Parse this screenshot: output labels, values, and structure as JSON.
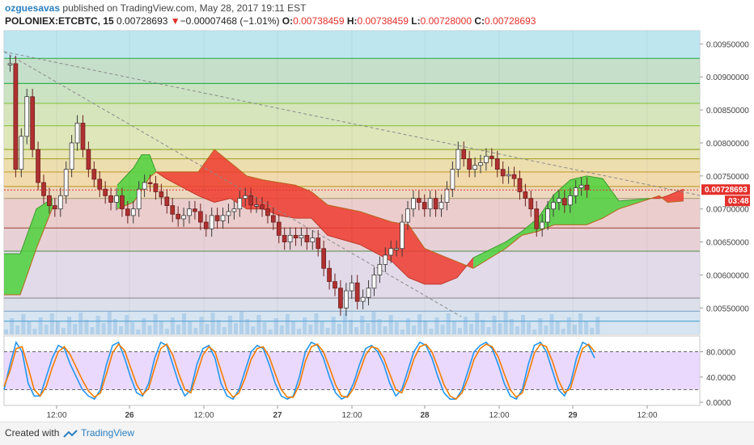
{
  "header": {
    "author": "ozguesavas",
    "published_text": "published on TradingView.com, May 28, 2017 19:11 EST",
    "symbol": "POLONIEX:ETCBTC, 15",
    "last": "0.00728693",
    "arrow": "▼",
    "change": "−0.00007468 (−1.01%)",
    "o_label": "O:",
    "o_value": "0.00738459",
    "h_label": "H:",
    "h_value": "0.00738459",
    "l_label": "L:",
    "l_value": "0.00728000",
    "c_label": "C:",
    "c_value": "0.00728693"
  },
  "footer": {
    "created": "Created with",
    "brand": "TradingView"
  },
  "colors": {
    "up": "#53b987",
    "down": "#eb4d5c",
    "kumo_bull": "#4cd13c",
    "kumo_bear": "#ee3b2f",
    "k_line": "#2196f3",
    "d_line": "#f57c00",
    "stoch_bg": "#e3ccfb"
  },
  "chart_data": [
    {
      "type": "candlestick",
      "title": "POLONIEX:ETCBTC, 15",
      "x_tick_labels": [
        "12:00",
        "26",
        "12:00",
        "27",
        "12:00",
        "28",
        "12:00",
        "29",
        "12:00"
      ],
      "y_tick_labels": [
        "0.00950000",
        "0.00900000",
        "0.00850000",
        "0.00800000",
        "0.00750000",
        "0.00700000",
        "0.00650000",
        "0.00600000",
        "0.00550000"
      ],
      "ylim": [
        0.0051,
        0.0097
      ],
      "last_price_label": "0.00728693",
      "countdown_label": "03:48",
      "fib_levels": [
        0.00928,
        0.0089,
        0.0086,
        0.00826,
        0.0079,
        0.00776,
        0.00756,
        0.00734,
        0.00716,
        0.00671,
        0.00636,
        0.00565,
        0.00545,
        0.0053
      ],
      "close_series": [
        0.0092,
        0.0076,
        0.0081,
        0.0087,
        0.0079,
        0.0074,
        0.0072,
        0.00705,
        0.007,
        0.0072,
        0.0076,
        0.008,
        0.0083,
        0.0079,
        0.0076,
        0.00745,
        0.0073,
        0.0072,
        0.0071,
        0.0072,
        0.007,
        0.0069,
        0.007,
        0.0073,
        0.0074,
        0.00738,
        0.00726,
        0.00718,
        0.00705,
        0.00692,
        0.00685,
        0.0069,
        0.007,
        0.00696,
        0.0068,
        0.0067,
        0.0069,
        0.00682,
        0.0069,
        0.00696,
        0.007,
        0.00716,
        0.0072,
        0.00706,
        0.00706,
        0.007,
        0.0069,
        0.0068,
        0.0066,
        0.0065,
        0.0066,
        0.00656,
        0.0066,
        0.0065,
        0.00656,
        0.0064,
        0.0061,
        0.0059,
        0.0058,
        0.0055,
        0.00576,
        0.00588,
        0.0056,
        0.00566,
        0.0058,
        0.006,
        0.00616,
        0.0063,
        0.0064,
        0.0064,
        0.0068,
        0.007,
        0.00716,
        0.0071,
        0.007,
        0.00716,
        0.007,
        0.0071,
        0.0073,
        0.0076,
        0.0079,
        0.00776,
        0.0076,
        0.00766,
        0.0077,
        0.0078,
        0.00776,
        0.0076,
        0.0075,
        0.00752,
        0.00746,
        0.00726,
        0.00716,
        0.007,
        0.0067,
        0.0068,
        0.007,
        0.0071,
        0.00716,
        0.00706,
        0.0072,
        0.00732,
        0.00736,
        0.00729
      ],
      "kumo_bull_segments": [
        {
          "x": [
            0.0,
            1.0,
            2.0,
            3.0
          ],
          "span_a": [
            0.00632,
            0.00632,
            0.007,
            0.00716
          ],
          "span_b": [
            0.0057,
            0.0057,
            0.0064,
            0.00702
          ]
        },
        {
          "x": [
            7.0,
            8.0,
            8.5,
            9.0,
            9.4
          ],
          "span_a": [
            0.00736,
            0.00762,
            0.00782,
            0.00782,
            0.00756
          ],
          "span_b": [
            0.007,
            0.0071,
            0.00728,
            0.00748,
            0.00756
          ]
        },
        {
          "x": [
            29.0,
            31.0,
            32.0,
            33.0,
            34.0,
            35.0,
            36.0,
            37.0,
            38.0,
            40.0
          ],
          "span_a": [
            0.00626,
            0.0065,
            0.00666,
            0.00686,
            0.00722,
            0.00744,
            0.0075,
            0.00746,
            0.00712,
            0.00716
          ],
          "span_b": [
            0.0061,
            0.0064,
            0.0066,
            0.00666,
            0.00676,
            0.00676,
            0.00676,
            0.00686,
            0.007,
            0.00716
          ]
        }
      ],
      "kumo_bear_segments": [
        {
          "x": [
            9.4,
            10.0,
            12.0,
            13.0,
            14.0,
            15.0,
            16.0,
            17.0,
            18.0,
            19.0,
            20.0,
            22.0,
            24.0,
            25.0,
            26.0,
            27.0,
            28.0,
            29.0
          ],
          "span_a": [
            0.00756,
            0.00746,
            0.0072,
            0.0071,
            0.00716,
            0.007,
            0.007,
            0.0069,
            0.00686,
            0.00686,
            0.0066,
            0.00646,
            0.0062,
            0.00596,
            0.00586,
            0.00586,
            0.00596,
            0.00626
          ],
          "span_b": [
            0.00756,
            0.00756,
            0.00756,
            0.0079,
            0.0077,
            0.0075,
            0.00744,
            0.0074,
            0.00736,
            0.00726,
            0.00706,
            0.00696,
            0.0068,
            0.00676,
            0.0064,
            0.0063,
            0.0062,
            0.0061
          ]
        },
        {
          "x": [
            40.0,
            40.5,
            41.0,
            42.0
          ],
          "span_a": [
            0.00716,
            0.00716,
            0.0072,
            0.0073
          ],
          "span_b": [
            0.00716,
            0.0072,
            0.0071,
            0.00712
          ]
        }
      ]
    },
    {
      "type": "line",
      "title": "Stochastic RSI",
      "y_tick_labels": [
        "80.0000",
        "40.0000",
        "0.0000"
      ],
      "ylim": [
        -5,
        105
      ],
      "bands": [
        80,
        20
      ],
      "series": [
        {
          "values": [
            20,
            60,
            95,
            80,
            30,
            10,
            10,
            40,
            70,
            90,
            85,
            60,
            40,
            20,
            10,
            5,
            20,
            60,
            90,
            95,
            70,
            40,
            15,
            10,
            30,
            70,
            95,
            90,
            60,
            30,
            10,
            20,
            60,
            85,
            90,
            70,
            30,
            10,
            5,
            20,
            50,
            80,
            90,
            85,
            60,
            30,
            10,
            5,
            10,
            40,
            80,
            95,
            90,
            70,
            40,
            15,
            5,
            10,
            30,
            60,
            85,
            90,
            80,
            60,
            30,
            10,
            20,
            50,
            80,
            95,
            90,
            70,
            40,
            15,
            5,
            5,
            20,
            50,
            80,
            90,
            95,
            85,
            60,
            30,
            10,
            5,
            20,
            60,
            90,
            95,
            80,
            50,
            20,
            10,
            30,
            70,
            95,
            90,
            70
          ]
        },
        {
          "values": [
            25,
            50,
            85,
            88,
            55,
            20,
            10,
            25,
            55,
            80,
            88,
            75,
            55,
            35,
            18,
            8,
            15,
            45,
            78,
            92,
            82,
            55,
            28,
            12,
            22,
            55,
            85,
            92,
            75,
            45,
            20,
            15,
            45,
            75,
            88,
            80,
            50,
            20,
            8,
            15,
            38,
            68,
            85,
            88,
            72,
            45,
            20,
            8,
            8,
            28,
            65,
            88,
            92,
            80,
            55,
            28,
            10,
            8,
            22,
            48,
            75,
            88,
            85,
            70,
            45,
            20,
            15,
            38,
            68,
            88,
            92,
            80,
            55,
            28,
            10,
            5,
            15,
            38,
            68,
            85,
            92,
            88,
            72,
            45,
            20,
            8,
            15,
            45,
            78,
            92,
            88,
            65,
            35,
            15,
            22,
            55,
            85,
            92,
            80
          ]
        }
      ]
    }
  ]
}
